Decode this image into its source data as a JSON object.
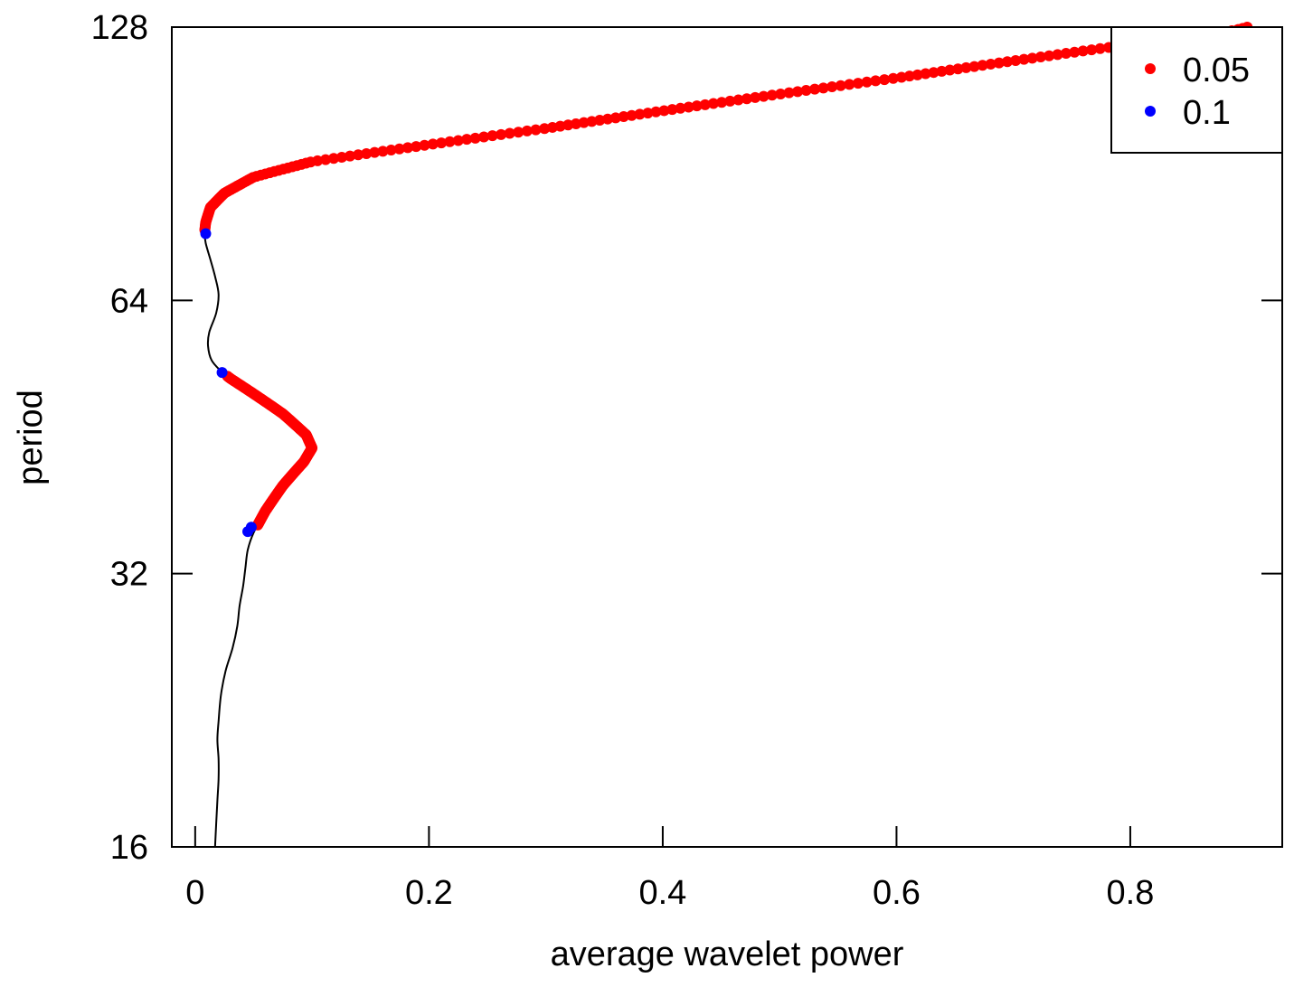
{
  "chart_data": {
    "type": "scatter",
    "title": "",
    "xlabel": "average wavelet power",
    "ylabel": "period",
    "xlim": [
      -0.02,
      0.93
    ],
    "xticks": [
      {
        "value": 0,
        "label": "0"
      },
      {
        "value": 0.2,
        "label": "0.2"
      },
      {
        "value": 0.4,
        "label": "0.4"
      },
      {
        "value": 0.6,
        "label": "0.6"
      },
      {
        "value": 0.8,
        "label": "0.8"
      }
    ],
    "ylog2": true,
    "ylim": [
      16,
      128
    ],
    "yticks": [
      {
        "value": 16,
        "label": "16"
      },
      {
        "value": 32,
        "label": "32"
      },
      {
        "value": 64,
        "label": "64"
      },
      {
        "value": 128,
        "label": "128"
      }
    ],
    "legend": {
      "position": "top-right",
      "entries": [
        {
          "label": "0.05",
          "color": "#ff0000"
        },
        {
          "label": "0.1",
          "color": "#0000ff"
        }
      ]
    },
    "line": {
      "color": "#000000",
      "points": [
        [
          0.017,
          16.0
        ],
        [
          0.018,
          17.0
        ],
        [
          0.019,
          18.0
        ],
        [
          0.02,
          19.0
        ],
        [
          0.02,
          20.0
        ],
        [
          0.019,
          21.0
        ],
        [
          0.02,
          22.0
        ],
        [
          0.022,
          23.5
        ],
        [
          0.026,
          25.0
        ],
        [
          0.032,
          26.5
        ],
        [
          0.036,
          28.0
        ],
        [
          0.038,
          29.5
        ],
        [
          0.041,
          31.0
        ],
        [
          0.043,
          32.5
        ],
        [
          0.045,
          34.0
        ],
        [
          0.05,
          35.5
        ],
        [
          0.06,
          37.5
        ],
        [
          0.075,
          40.0
        ],
        [
          0.093,
          42.5
        ],
        [
          0.1,
          44.0
        ],
        [
          0.095,
          45.5
        ],
        [
          0.075,
          48.0
        ],
        [
          0.05,
          50.5
        ],
        [
          0.03,
          52.5
        ],
        [
          0.022,
          53.5
        ],
        [
          0.014,
          55.0
        ],
        [
          0.011,
          57.0
        ],
        [
          0.012,
          59.0
        ],
        [
          0.018,
          62.0
        ],
        [
          0.02,
          65.0
        ],
        [
          0.017,
          68.0
        ],
        [
          0.013,
          71.0
        ],
        [
          0.009,
          74.0
        ],
        [
          0.008,
          76.0
        ],
        [
          0.009,
          78.0
        ],
        [
          0.013,
          81.0
        ],
        [
          0.025,
          84.0
        ],
        [
          0.05,
          87.5
        ],
        [
          0.1,
          91.0
        ],
        [
          0.2,
          95.0
        ],
        [
          0.3,
          99.0
        ],
        [
          0.4,
          103.5
        ],
        [
          0.5,
          108.0
        ],
        [
          0.6,
          112.5
        ],
        [
          0.7,
          117.5
        ],
        [
          0.8,
          122.5
        ],
        [
          0.85,
          125.0
        ],
        [
          0.89,
          127.0
        ],
        [
          0.9,
          128.0
        ]
      ]
    },
    "series": [
      {
        "color": "#ff0000",
        "segments": [
          {
            "from": 76.5,
            "to": 128.0
          },
          {
            "from": 36.2,
            "to": 52.8
          }
        ]
      },
      {
        "color": "#0000ff",
        "points": [
          [
            0.009,
            75.8
          ],
          [
            0.023,
            53.3
          ],
          [
            0.045,
            35.6
          ],
          [
            0.048,
            36.0
          ]
        ]
      }
    ]
  }
}
